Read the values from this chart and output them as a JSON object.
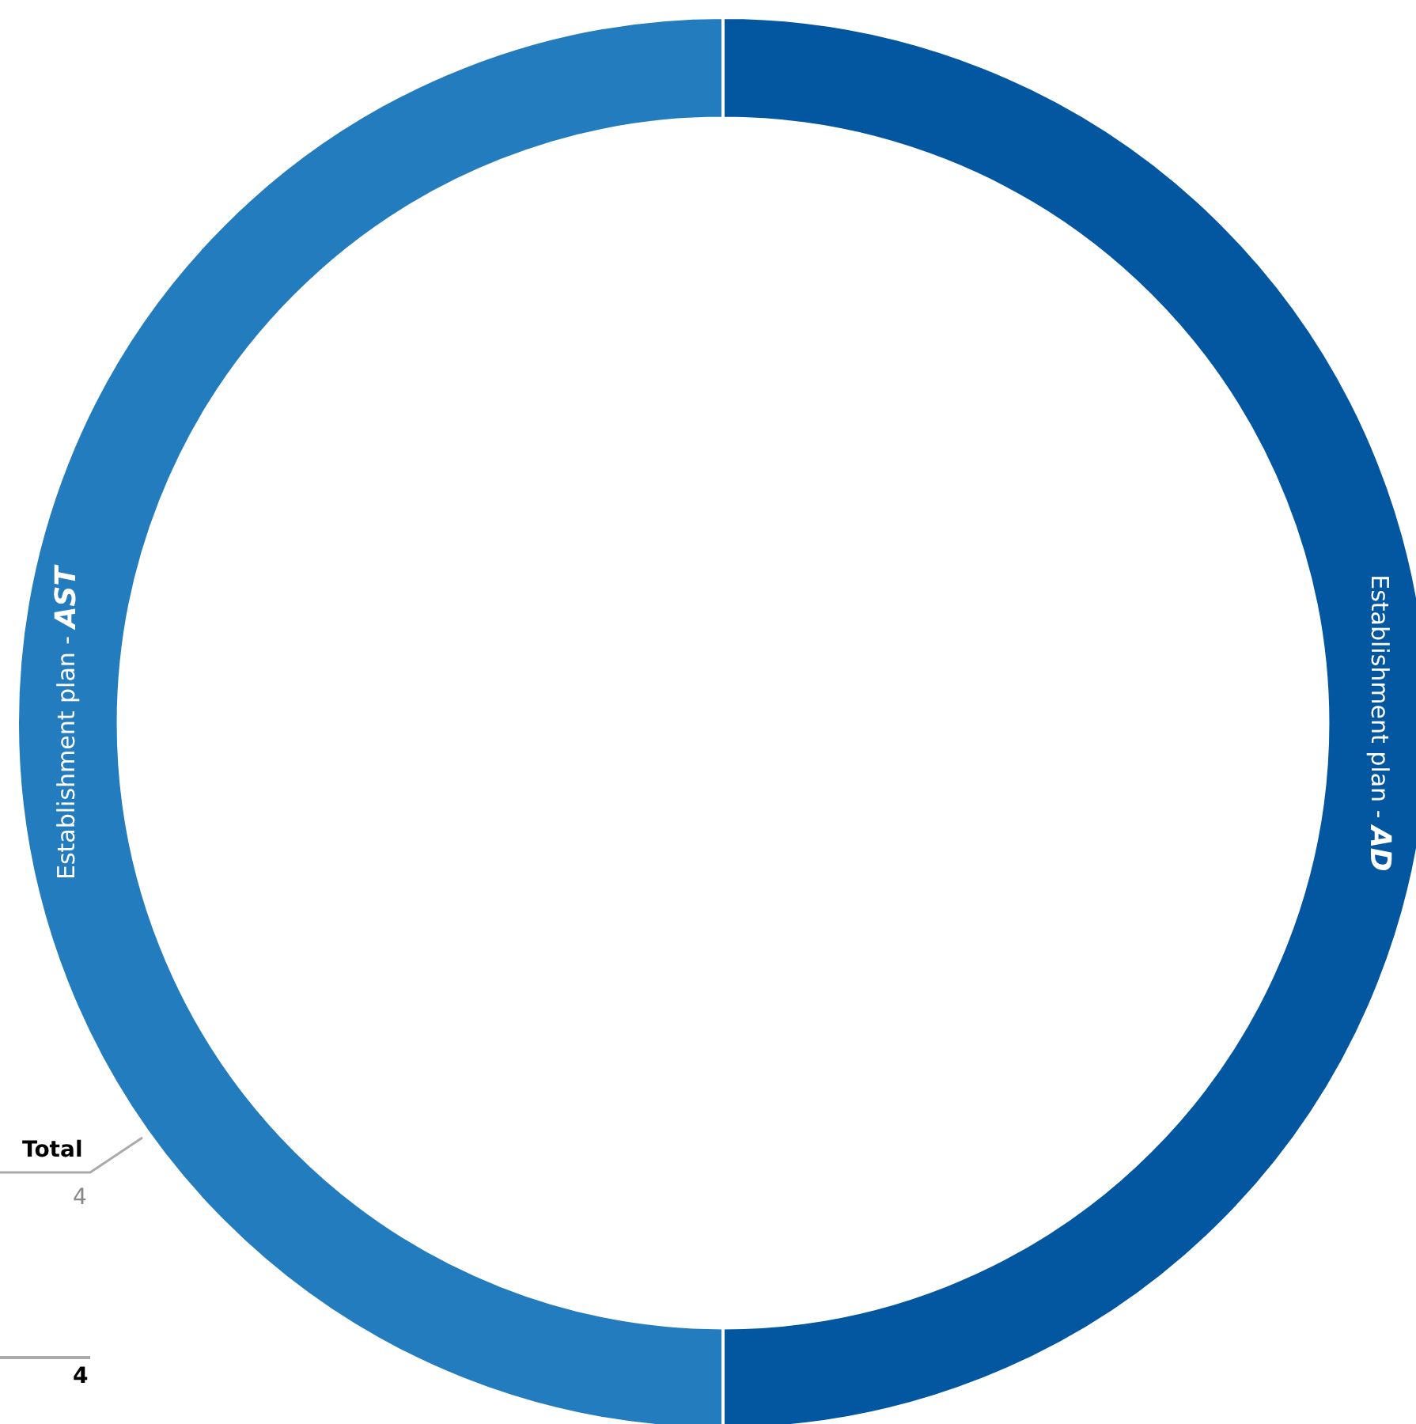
{
  "chart_data": {
    "type": "donut",
    "categories": [
      "Establishment plan - AD",
      "Establishment plan - AST"
    ],
    "values": [
      50,
      50
    ],
    "colors": [
      "#0357a0",
      "#237cbd"
    ],
    "legend": false,
    "annotations": [
      "Total",
      "4",
      "4"
    ]
  }
}
